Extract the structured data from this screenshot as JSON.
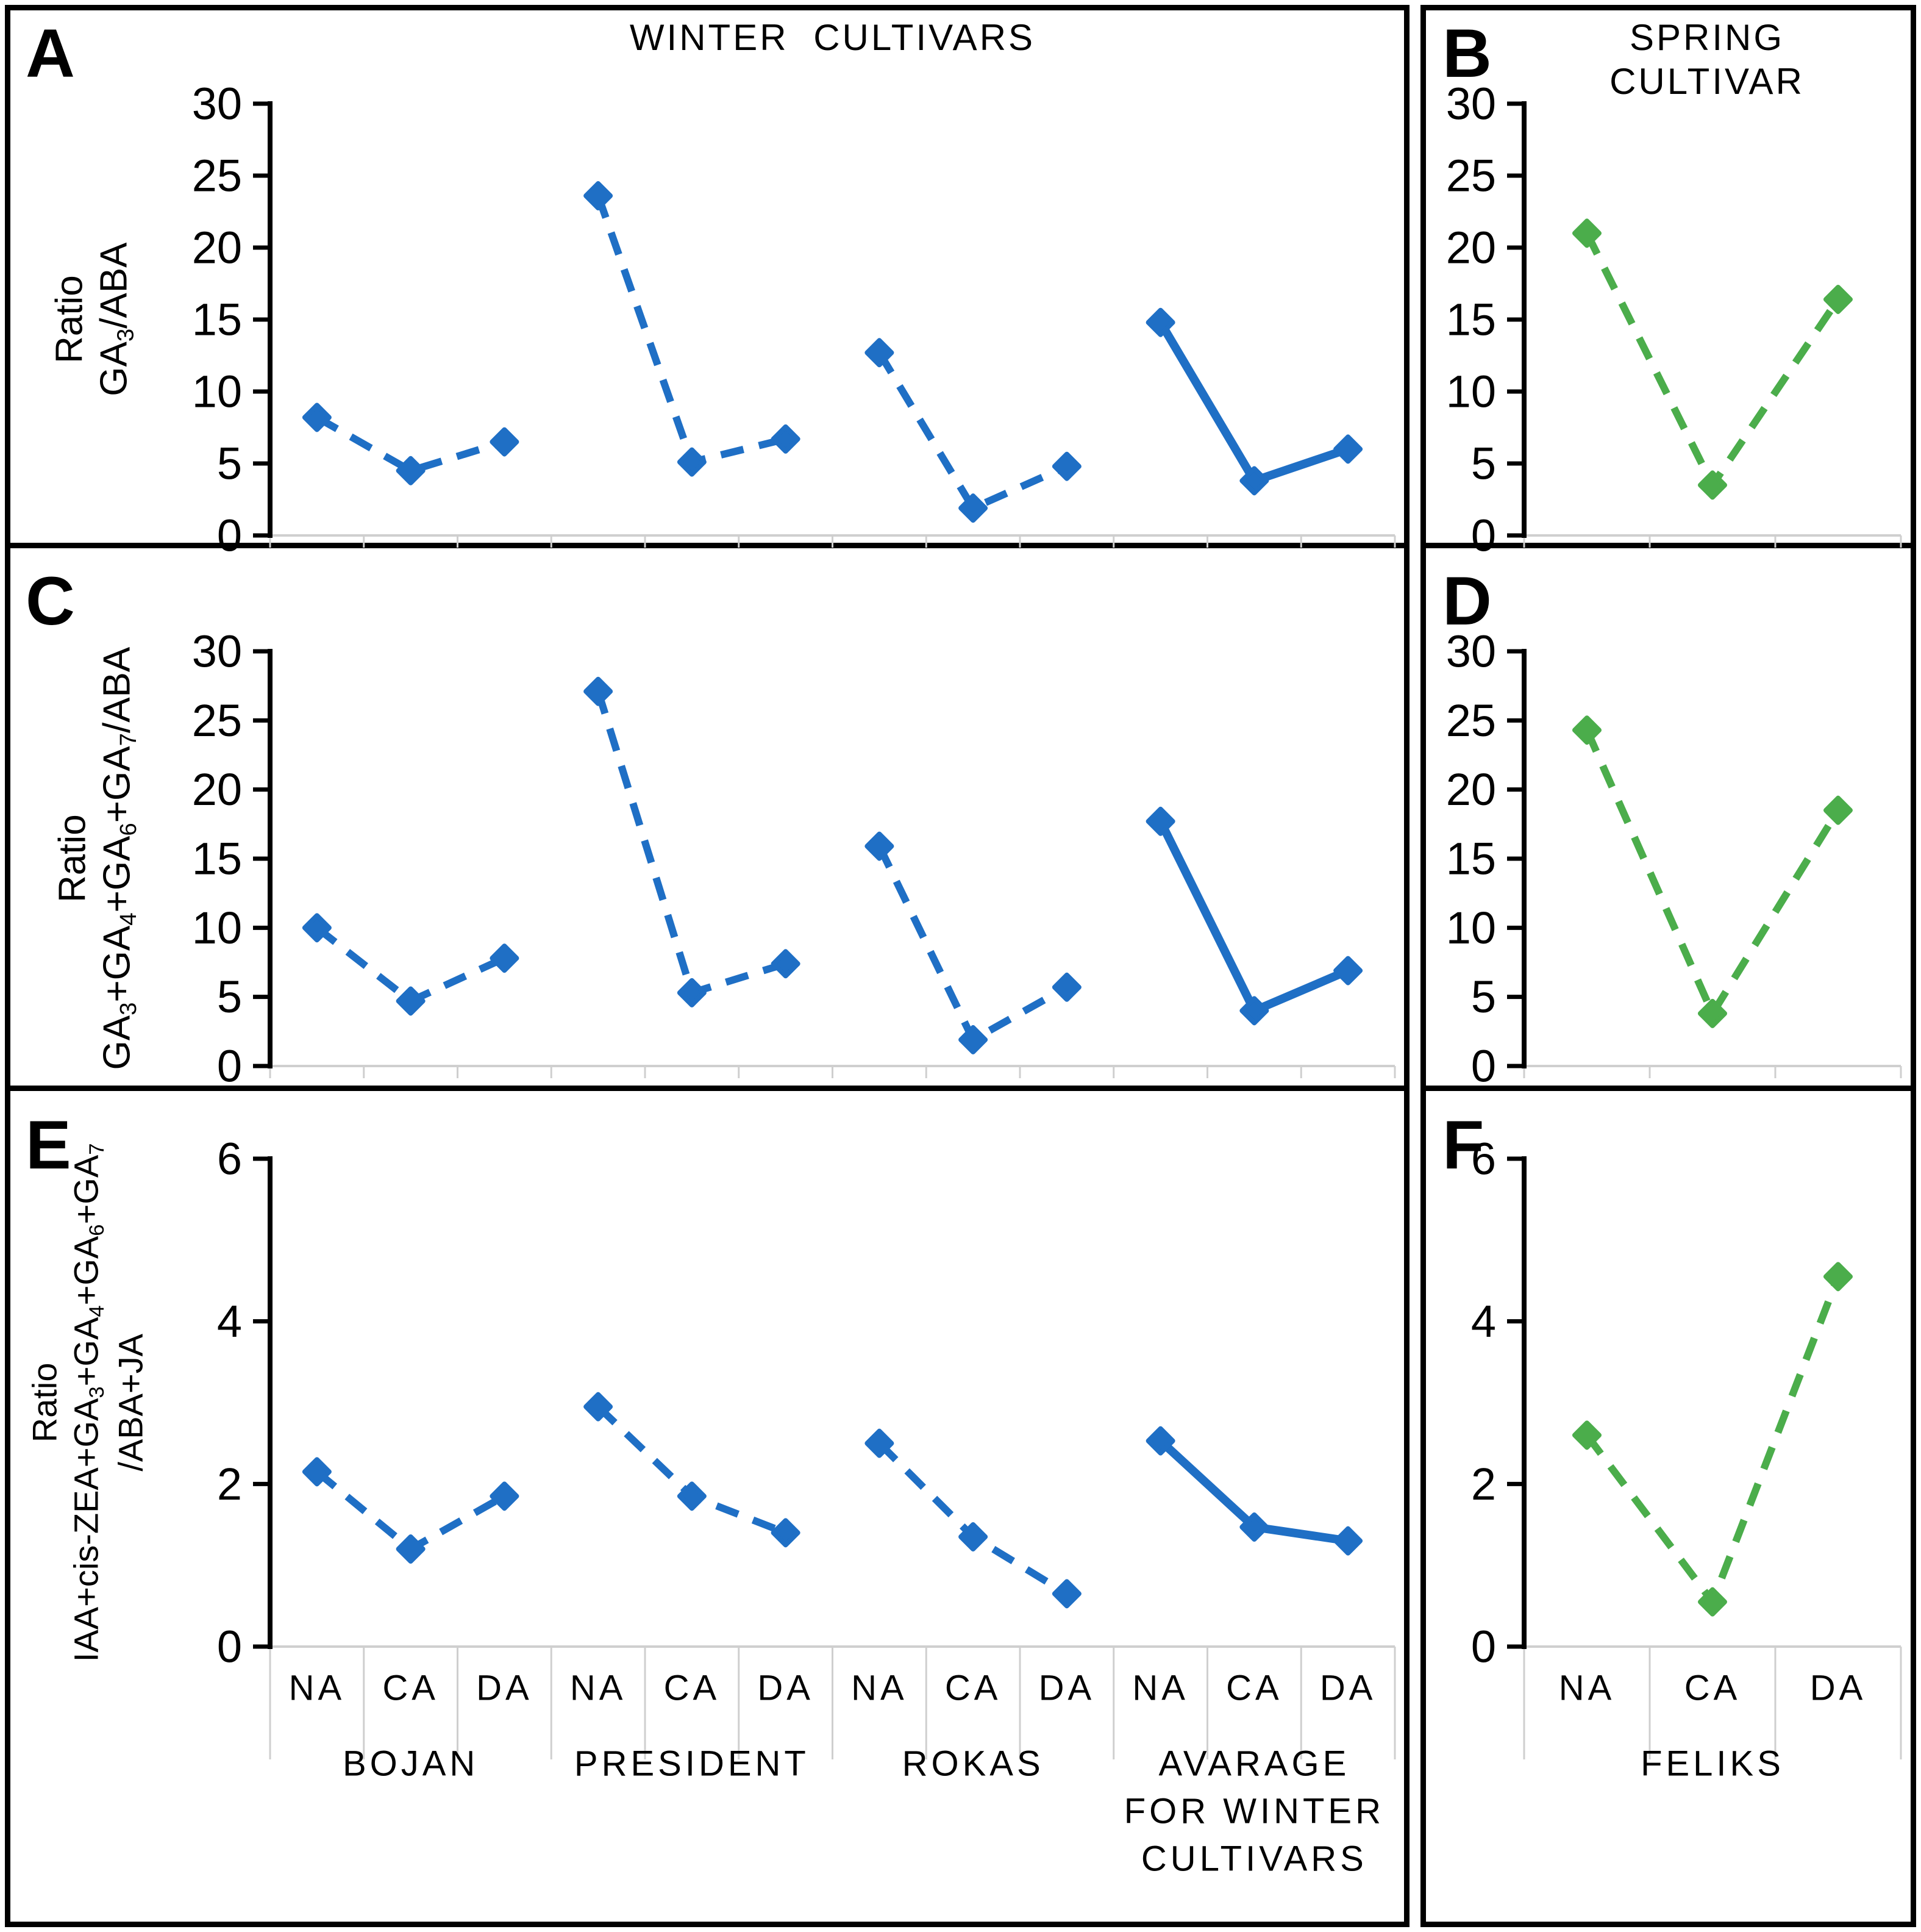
{
  "chart_data": [
    {
      "id": "A",
      "panel_letter": "A",
      "type": "line",
      "title": "WINTER CULTIVARS",
      "ylabel_lines": [
        "Ratio",
        "GA₃/ABA"
      ],
      "ylim": [
        0,
        30
      ],
      "ytick_step": 5,
      "line_color": "#1F6FC5",
      "marker": "diamond",
      "categories": [
        "NA",
        "CA",
        "DA"
      ],
      "show_category_labels": false,
      "grid": "off",
      "legend": "none",
      "groups": [
        {
          "name": "BOJAN",
          "line_style": "dashed",
          "values": [
            8.2,
            4.5,
            6.5
          ]
        },
        {
          "name": "PRESIDENT",
          "line_style": "dashed",
          "values": [
            23.6,
            5.1,
            6.7
          ]
        },
        {
          "name": "ROKAS",
          "line_style": "dashed",
          "values": [
            12.7,
            1.9,
            4.8
          ]
        },
        {
          "name": "AVARAGE FOR WINTER CULTIVARS",
          "name_lines": [
            "AVARAGE",
            "FOR WINTER",
            "CULTIVARS"
          ],
          "line_style": "solid",
          "values": [
            14.8,
            3.8,
            6.0
          ]
        }
      ]
    },
    {
      "id": "B",
      "panel_letter": "B",
      "type": "line",
      "title_lines": [
        "SPRING",
        "CULTIVAR"
      ],
      "ylabel_lines": [],
      "ylim": [
        0,
        30
      ],
      "ytick_step": 5,
      "line_color": "#4BAD4B",
      "marker": "diamond",
      "categories": [
        "NA",
        "CA",
        "DA"
      ],
      "show_category_labels": false,
      "grid": "off",
      "legend": "none",
      "groups": [
        {
          "name": "FELIKS",
          "line_style": "dashed",
          "values": [
            21.0,
            3.5,
            16.4
          ]
        }
      ]
    },
    {
      "id": "C",
      "panel_letter": "C",
      "type": "line",
      "title": null,
      "ylabel_lines": [
        "Ratio",
        "GA₃+GA₄+GA₆+GA₇/ABA"
      ],
      "ylim": [
        0,
        30
      ],
      "ytick_step": 5,
      "line_color": "#1F6FC5",
      "marker": "diamond",
      "categories": [
        "NA",
        "CA",
        "DA"
      ],
      "show_category_labels": false,
      "grid": "off",
      "legend": "none",
      "groups": [
        {
          "name": "BOJAN",
          "line_style": "dashed",
          "values": [
            10.0,
            4.7,
            7.8
          ]
        },
        {
          "name": "PRESIDENT",
          "line_style": "dashed",
          "values": [
            27.1,
            5.3,
            7.4
          ]
        },
        {
          "name": "ROKAS",
          "line_style": "dashed",
          "values": [
            15.9,
            1.9,
            5.7
          ]
        },
        {
          "name": "AVARAGE FOR WINTER CULTIVARS",
          "name_lines": [
            "AVARAGE",
            "FOR WINTER",
            "CULTIVARS"
          ],
          "line_style": "solid",
          "values": [
            17.7,
            4.0,
            6.9
          ]
        }
      ]
    },
    {
      "id": "D",
      "panel_letter": "D",
      "type": "line",
      "title": null,
      "ylabel_lines": [],
      "ylim": [
        0,
        30
      ],
      "ytick_step": 5,
      "line_color": "#4BAD4B",
      "marker": "diamond",
      "categories": [
        "NA",
        "CA",
        "DA"
      ],
      "show_category_labels": false,
      "grid": "off",
      "legend": "none",
      "groups": [
        {
          "name": "FELIKS",
          "line_style": "dashed",
          "values": [
            24.3,
            3.8,
            18.5
          ]
        }
      ]
    },
    {
      "id": "E",
      "panel_letter": "E",
      "type": "line",
      "title": null,
      "ylabel_lines": [
        "Ratio",
        "IAA+cis-ZEA+GA₃+GA₄+GA₆+GA₇",
        "/ABA+JA"
      ],
      "ylim": [
        0,
        6
      ],
      "ytick_step": 2,
      "line_color": "#1F6FC5",
      "marker": "diamond",
      "categories": [
        "NA",
        "CA",
        "DA"
      ],
      "show_category_labels": true,
      "grid": "off",
      "legend": "none",
      "groups": [
        {
          "name": "BOJAN",
          "line_style": "dashed",
          "values": [
            2.15,
            1.2,
            1.85
          ]
        },
        {
          "name": "PRESIDENT",
          "line_style": "dashed",
          "values": [
            2.95,
            1.85,
            1.4
          ]
        },
        {
          "name": "ROKAS",
          "line_style": "dashed",
          "values": [
            2.5,
            1.35,
            0.65
          ]
        },
        {
          "name": "AVARAGE FOR WINTER CULTIVARS",
          "name_lines": [
            "AVARAGE",
            "FOR WINTER",
            "CULTIVARS"
          ],
          "line_style": "solid",
          "values": [
            2.53,
            1.47,
            1.3
          ]
        }
      ]
    },
    {
      "id": "F",
      "panel_letter": "F",
      "type": "line",
      "title": null,
      "ylabel_lines": [],
      "ylim": [
        0,
        6
      ],
      "ytick_step": 2,
      "line_color": "#4BAD4B",
      "marker": "diamond",
      "categories": [
        "NA",
        "CA",
        "DA"
      ],
      "show_category_labels": true,
      "grid": "off",
      "legend": "none",
      "groups": [
        {
          "name": "FELIKS",
          "line_style": "dashed",
          "values": [
            2.6,
            0.55,
            4.55
          ]
        }
      ]
    }
  ]
}
